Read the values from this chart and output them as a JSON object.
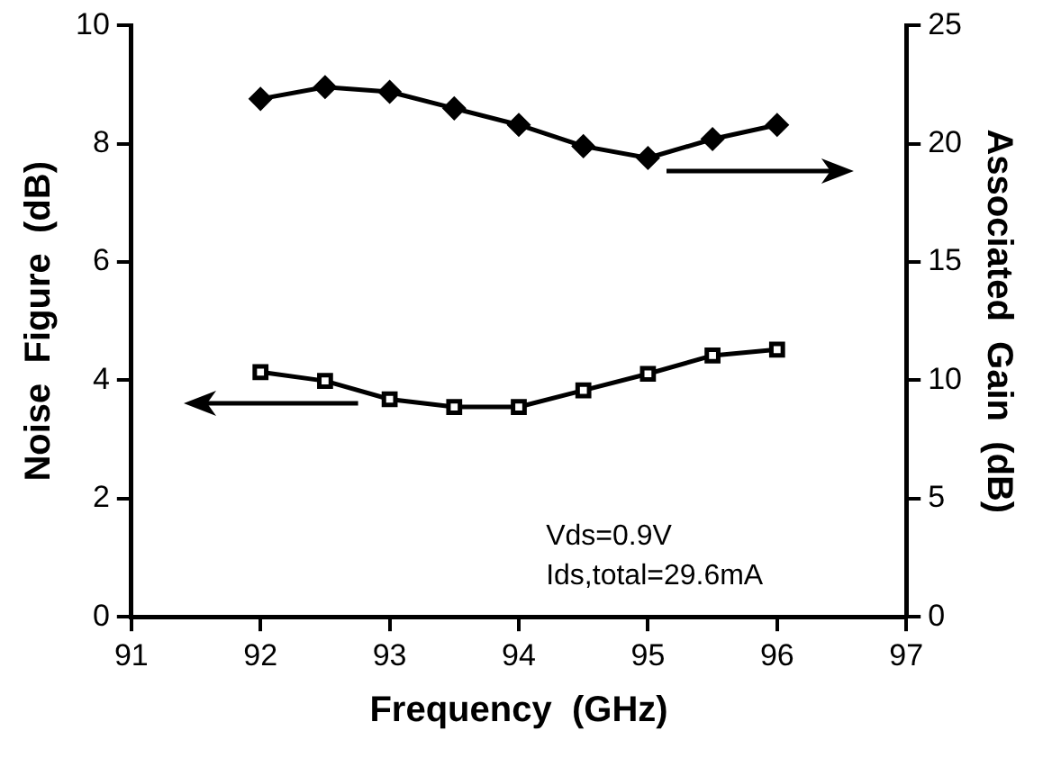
{
  "chart_data": {
    "type": "line",
    "xlabel": "Frequency  (GHz)",
    "ylabel": "Noise  Figure  (dB)",
    "y2label": "Associated  Gain  (dB)",
    "x": [
      92,
      92.5,
      93,
      93.5,
      94,
      94.5,
      95,
      95.5,
      96
    ],
    "series": [
      {
        "name": null,
        "color": "#000000",
        "marker": "square",
        "values": [
          4.14,
          3.99,
          3.68,
          3.55,
          3.55,
          3.83,
          4.11,
          4.42,
          4.52
        ]
      },
      {
        "name": null,
        "color": "#000000",
        "marker": "diamond",
        "axis": "y2",
        "values": [
          21.9,
          22.4,
          22.2,
          21.5,
          20.8,
          19.9,
          19.4,
          20.2,
          20.8
        ]
      }
    ],
    "xlim": [
      91,
      97
    ],
    "xticks": [
      91,
      92,
      93,
      94,
      95,
      96,
      97
    ],
    "ylim": [
      0,
      10
    ],
    "yticks": [
      0,
      2,
      4,
      6,
      8,
      10
    ],
    "y2lim": [
      0,
      25
    ],
    "y2ticks": [
      0,
      5,
      10,
      15,
      20,
      25
    ],
    "annotations": [
      "Vds=0.9V",
      "Ids,total=29.6mA"
    ],
    "grid": false,
    "legend": false
  }
}
